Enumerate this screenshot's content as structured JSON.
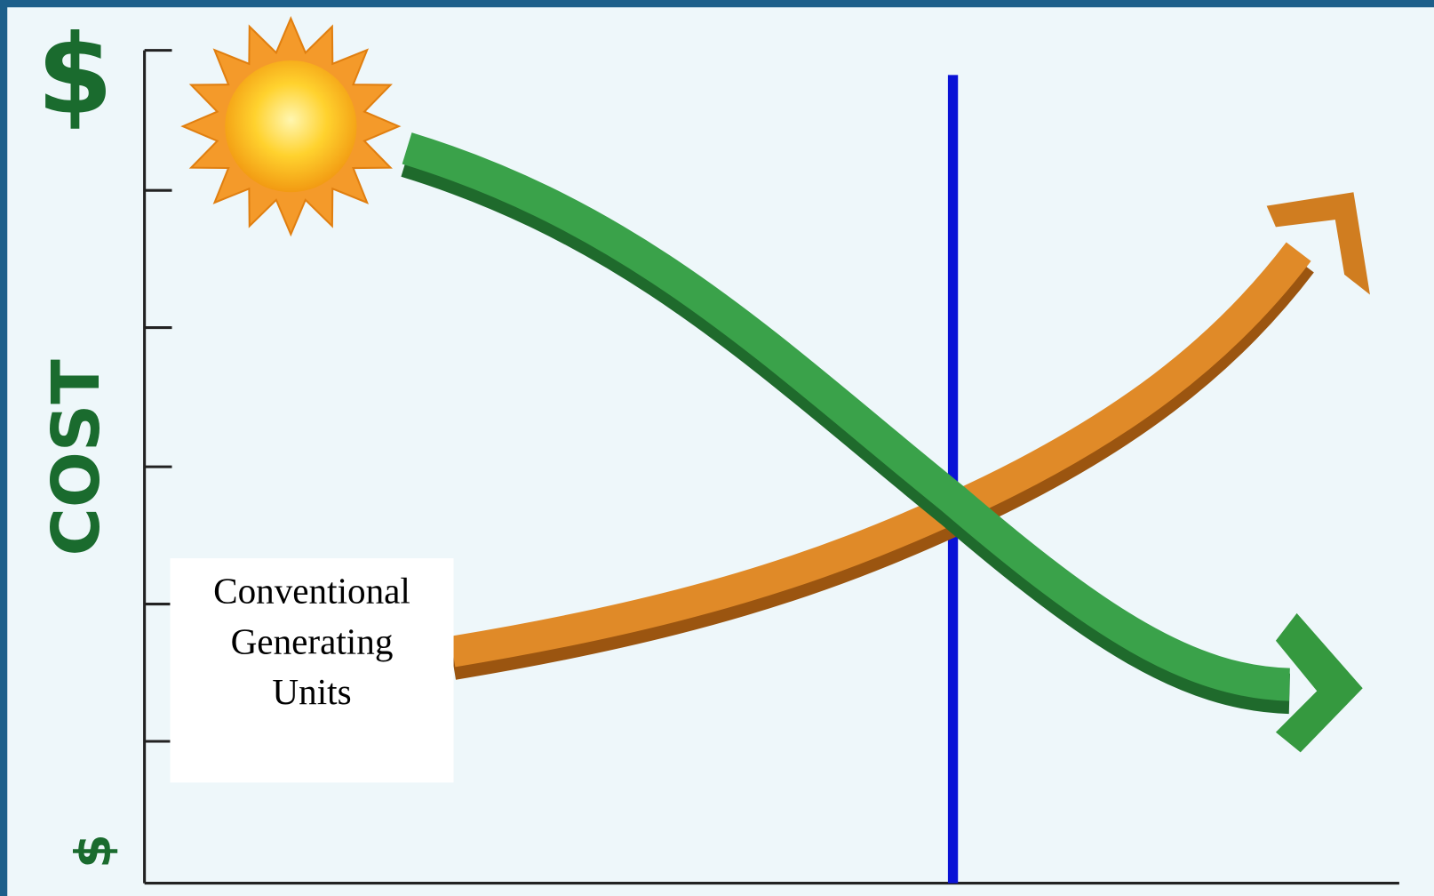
{
  "axis": {
    "top_label": "$",
    "title": "COST",
    "bottom_label": "$"
  },
  "label_box": {
    "lines": [
      "Conventional",
      "Generating",
      "Units"
    ]
  }
}
